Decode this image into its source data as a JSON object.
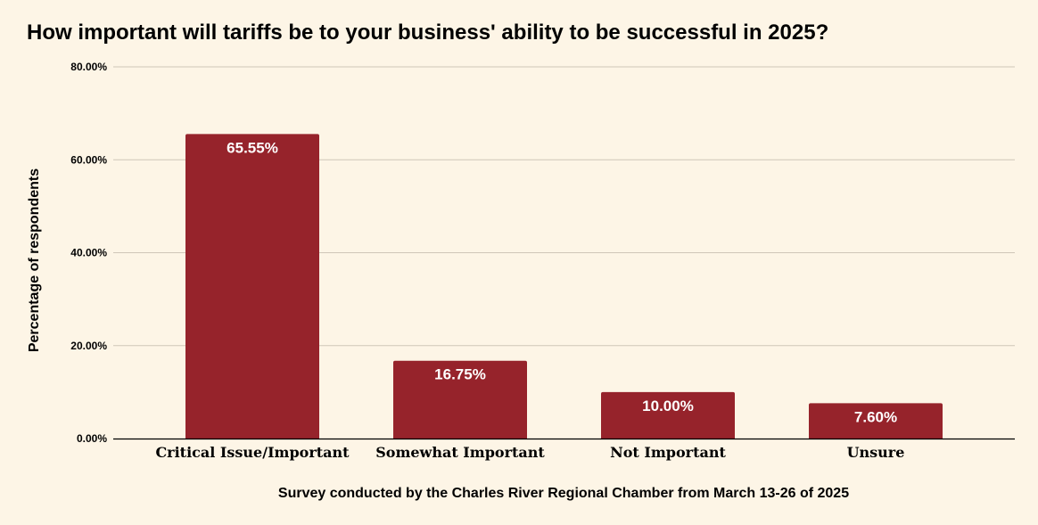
{
  "chart_data": {
    "type": "bar",
    "title": "How important will tariffs be to your business' ability to be successful in 2025?",
    "xlabel": "Survey conducted by the Charles River Regional Chamber from March 13-26 of 2025",
    "ylabel": "Percentage of respondents",
    "categories": [
      "Critical Issue/Important",
      "Somewhat Important",
      "Not Important",
      "Unsure"
    ],
    "values": [
      65.55,
      16.75,
      10.0,
      7.6
    ],
    "data_labels": [
      "65.55%",
      "16.75%",
      "10.00%",
      "7.60%"
    ],
    "ylim": [
      0,
      80
    ],
    "yticks": [
      0,
      20,
      40,
      60,
      80
    ],
    "ytick_labels": [
      "0.00%",
      "20.00%",
      "40.00%",
      "60.00%",
      "80.00%"
    ],
    "grid": true,
    "legend": "none",
    "colors": {
      "background": "#fdf5e6",
      "bar": "#96232b",
      "grid": "#cfc6b8",
      "axis": "#000000",
      "data_label": "#ffffff"
    }
  }
}
